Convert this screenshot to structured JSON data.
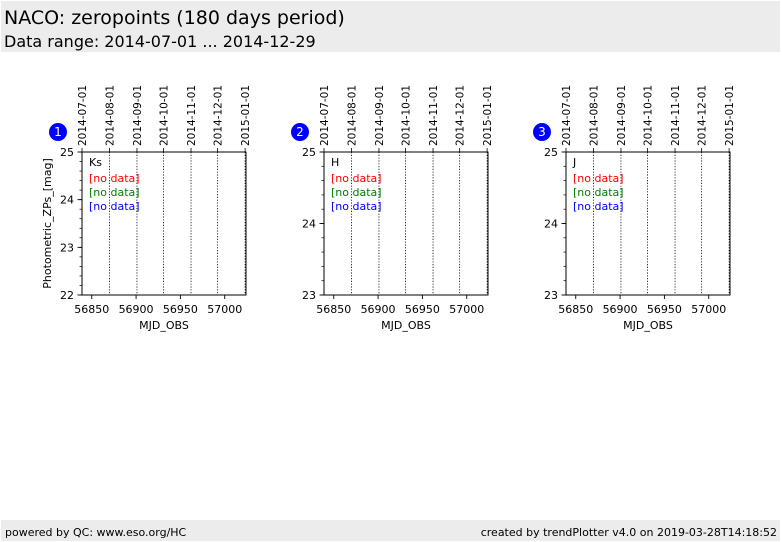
{
  "header": {
    "title": "NACO: zeropoints (180 days period)",
    "subtitle": "Data range: 2014-07-01 ... 2014-12-29"
  },
  "footer": {
    "left": "powered by QC: www.eso.org/HC",
    "right": "created by trendPlotter v4.0 on 2019-03-28T14:18:52"
  },
  "colors": {
    "badge": "#0000ff",
    "series": [
      "#ff0000",
      "#008000",
      "#0000ff"
    ]
  },
  "chart_data": [
    {
      "type": "scatter",
      "badge": "1",
      "band_label": "Ks",
      "xlabel": "MJD_OBS",
      "ylabel": "Photometric_ZPs_[mag]",
      "xlim": [
        56839,
        57024
      ],
      "ylim": [
        22,
        25
      ],
      "xticks": [
        56850,
        56900,
        56950,
        57000
      ],
      "yticks": [
        22,
        23,
        24,
        25
      ],
      "yminor_step": 0.2,
      "top_date_ticks": [
        {
          "label": "2014-07-01",
          "mjd": 56839
        },
        {
          "label": "2014-08-01",
          "mjd": 56870
        },
        {
          "label": "2014-09-01",
          "mjd": 56901
        },
        {
          "label": "2014-10-01",
          "mjd": 56931
        },
        {
          "label": "2014-11-01",
          "mjd": 56962
        },
        {
          "label": "2014-12-01",
          "mjd": 56992
        },
        {
          "label": "2015-01-01",
          "mjd": 57023
        }
      ],
      "series": [
        {
          "label": "[no data]",
          "values": []
        },
        {
          "label": "[no data]",
          "values": []
        },
        {
          "label": "[no data]",
          "values": []
        }
      ]
    },
    {
      "type": "scatter",
      "badge": "2",
      "band_label": "H",
      "xlabel": "MJD_OBS",
      "ylabel": "",
      "xlim": [
        56839,
        57024
      ],
      "ylim": [
        23,
        25
      ],
      "xticks": [
        56850,
        56900,
        56950,
        57000
      ],
      "yticks": [
        23,
        24,
        25
      ],
      "yminor_step": 0.2,
      "top_date_ticks": [
        {
          "label": "2014-07-01",
          "mjd": 56839
        },
        {
          "label": "2014-08-01",
          "mjd": 56870
        },
        {
          "label": "2014-09-01",
          "mjd": 56901
        },
        {
          "label": "2014-10-01",
          "mjd": 56931
        },
        {
          "label": "2014-11-01",
          "mjd": 56962
        },
        {
          "label": "2014-12-01",
          "mjd": 56992
        },
        {
          "label": "2015-01-01",
          "mjd": 57023
        }
      ],
      "series": [
        {
          "label": "[no data]",
          "values": []
        },
        {
          "label": "[no data]",
          "values": []
        },
        {
          "label": "[no data]",
          "values": []
        }
      ]
    },
    {
      "type": "scatter",
      "badge": "3",
      "band_label": "J",
      "xlabel": "MJD_OBS",
      "ylabel": "",
      "xlim": [
        56839,
        57024
      ],
      "ylim": [
        23,
        25
      ],
      "xticks": [
        56850,
        56900,
        56950,
        57000
      ],
      "yticks": [
        23,
        24,
        25
      ],
      "yminor_step": 0.2,
      "top_date_ticks": [
        {
          "label": "2014-07-01",
          "mjd": 56839
        },
        {
          "label": "2014-08-01",
          "mjd": 56870
        },
        {
          "label": "2014-09-01",
          "mjd": 56901
        },
        {
          "label": "2014-10-01",
          "mjd": 56931
        },
        {
          "label": "2014-11-01",
          "mjd": 56962
        },
        {
          "label": "2014-12-01",
          "mjd": 56992
        },
        {
          "label": "2015-01-01",
          "mjd": 57023
        }
      ],
      "series": [
        {
          "label": "[no data]",
          "values": []
        },
        {
          "label": "[no data]",
          "values": []
        },
        {
          "label": "[no data]",
          "values": []
        }
      ]
    }
  ]
}
